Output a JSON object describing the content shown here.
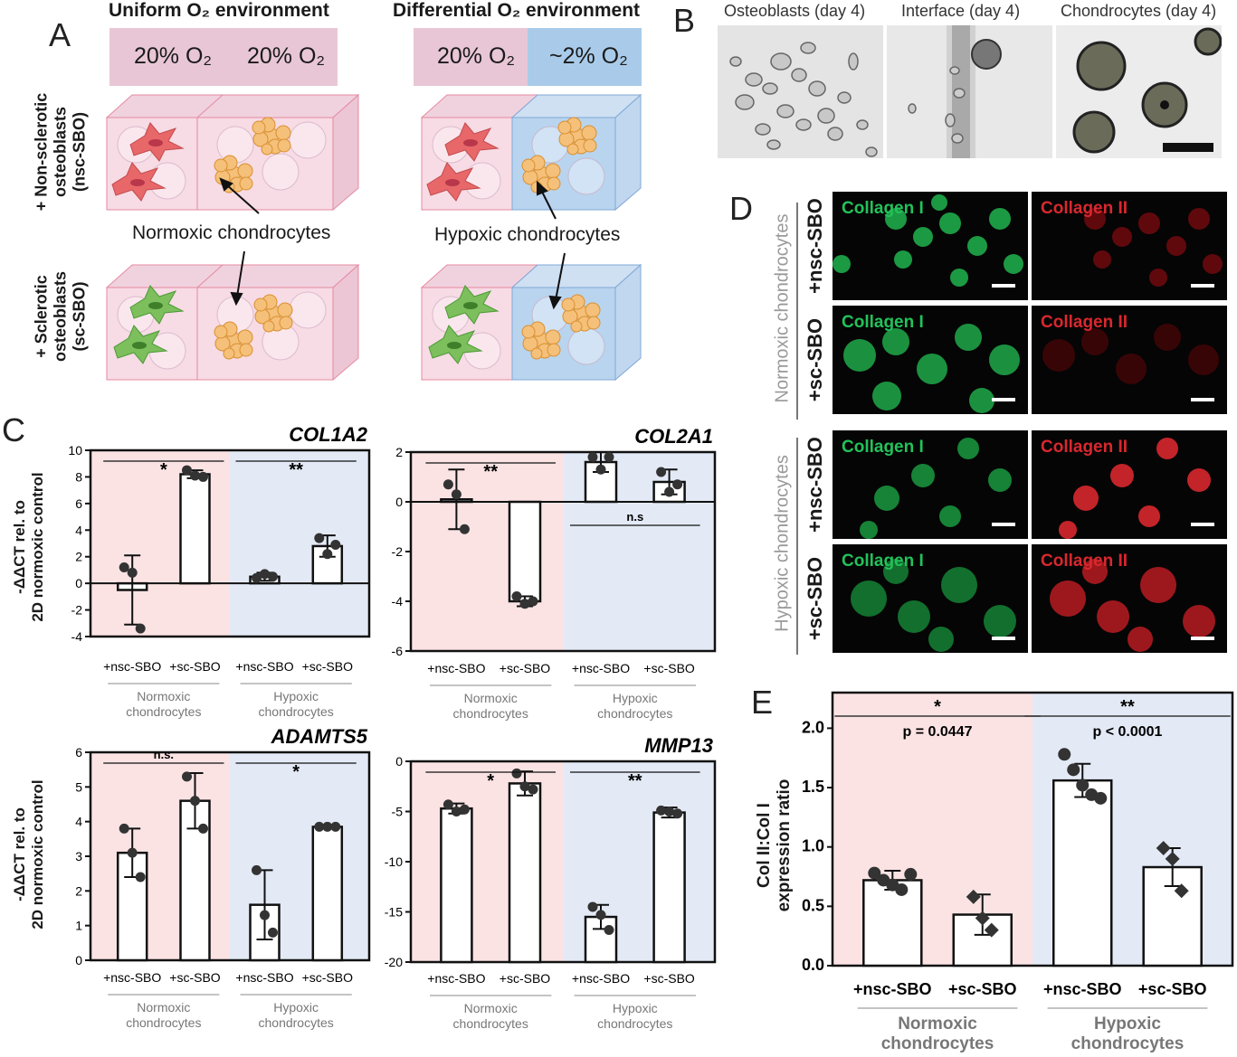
{
  "panel_labels": {
    "A": "A",
    "B": "B",
    "C": "C",
    "D": "D",
    "E": "E"
  },
  "panelA": {
    "uniform_title": "Uniform O₂ environment",
    "differential_title": "Differential O₂ environment",
    "uniform_bar": [
      "20% O₂",
      "20% O₂"
    ],
    "differential_bar": [
      "20% O₂",
      "~2% O₂"
    ],
    "row1_label": [
      "+ Non-sclerotic",
      "osteoblasts",
      "(nsc-SBO)"
    ],
    "row2_label": [
      "+ Sclerotic",
      "osteoblasts",
      "(sc-SBO)"
    ],
    "normoxic_label": "Normoxic chondrocytes",
    "hypoxic_label": "Hypoxic chondrocytes",
    "colors": {
      "pink": "#e8c6d6",
      "blue": "#a9cbe9",
      "nsc_cell": "#e8686a",
      "sc_cell": "#7cbf5c",
      "chondro": "#f5c07a"
    }
  },
  "panelB": {
    "titles": [
      "Osteoblasts (day 4)",
      "Interface (day 4)",
      "Chondrocytes (day 4)"
    ]
  },
  "panelD": {
    "group_labels": [
      "Normoxic chondrocytes",
      "Hypoxic chondrocytes"
    ],
    "row_labels": [
      "+nsc-SBO",
      "+sc-SBO",
      "+nsc-SBO",
      "+sc-SBO"
    ],
    "col1": "Collagen I",
    "col2": "Collagen II",
    "colors": {
      "green": "#22c25a",
      "red": "#d8282e"
    }
  },
  "panelC": {
    "ylabel": [
      "-ΔΔCT rel. to",
      "2D normoxic control"
    ],
    "group_labels": [
      [
        "Normoxic",
        "chondrocytes"
      ],
      [
        "Hypoxic",
        "chondrocytes"
      ]
    ],
    "colors": {
      "normoxic_bg": "#fbe3e4",
      "hypoxic_bg": "#e3eaf6"
    }
  },
  "panelE": {
    "ylabel": [
      "Col II:Col I",
      "expression ratio"
    ],
    "group_labels": [
      [
        "Normoxic",
        "chondrocytes"
      ],
      [
        "Hypoxic",
        "chondrocytes"
      ]
    ],
    "p_values": [
      "p = 0.0447",
      "p < 0.0001"
    ]
  },
  "chart_data": [
    {
      "id": "COL1A2",
      "type": "bar",
      "title": "COL1A2",
      "categories": [
        "+nsc-SBO",
        "+sc-SBO",
        "+nsc-SBO",
        "+sc-SBO"
      ],
      "values": [
        -0.5,
        8.2,
        0.5,
        2.8
      ],
      "err": [
        2.6,
        0.3,
        0.3,
        0.8
      ],
      "points": [
        [
          1.2,
          0.8,
          -3.4
        ],
        [
          8.5,
          8.1,
          8.0
        ],
        [
          0.4,
          0.7,
          0.5
        ],
        [
          3.4,
          2.2,
          2.9
        ]
      ],
      "ylim": [
        -4,
        10
      ],
      "yticks": [
        -4,
        -2,
        0,
        2,
        4,
        6,
        8,
        10
      ],
      "sig": [
        {
          "g": 0,
          "label": "*"
        },
        {
          "g": 1,
          "label": "**"
        }
      ]
    },
    {
      "id": "COL2A1",
      "type": "bar",
      "title": "COL2A1",
      "categories": [
        "+nsc-SBO",
        "+sc-SBO",
        "+nsc-SBO",
        "+sc-SBO"
      ],
      "values": [
        0.1,
        -4.0,
        1.6,
        0.8
      ],
      "err": [
        1.2,
        0.2,
        0.4,
        0.5
      ],
      "points": [
        [
          0.7,
          0.3,
          -1.1
        ],
        [
          -3.8,
          -4.1,
          -4.0
        ],
        [
          1.8,
          1.3,
          1.8
        ],
        [
          1.2,
          0.4,
          0.7
        ]
      ],
      "ylim": [
        -6,
        2
      ],
      "yticks": [
        -6,
        -4,
        -2,
        0,
        2
      ],
      "sig": [
        {
          "g": 0,
          "label": "**"
        },
        {
          "g": 1,
          "label": "n.s",
          "below": true
        }
      ]
    },
    {
      "id": "ADAMTS5",
      "type": "bar",
      "title": "ADAMTS5",
      "categories": [
        "+nsc-SBO",
        "+sc-SBO",
        "+nsc-SBO",
        "+sc-SBO"
      ],
      "values": [
        3.1,
        4.6,
        1.6,
        3.85
      ],
      "err": [
        0.7,
        0.8,
        1.0,
        0.05
      ],
      "points": [
        [
          3.8,
          3.1,
          2.4
        ],
        [
          5.3,
          4.6,
          3.8
        ],
        [
          2.6,
          1.3,
          0.8
        ],
        [
          3.85,
          3.85,
          3.85
        ]
      ],
      "ylim": [
        0,
        6
      ],
      "yticks": [
        0,
        1,
        2,
        3,
        4,
        5,
        6
      ],
      "sig": [
        {
          "g": 0,
          "label": "n.s."
        },
        {
          "g": 1,
          "label": "*"
        }
      ]
    },
    {
      "id": "MMP13",
      "type": "bar",
      "title": "MMP13",
      "categories": [
        "+nsc-SBO",
        "+sc-SBO",
        "+nsc-SBO",
        "+sc-SBO"
      ],
      "values": [
        -4.7,
        -2.2,
        -15.5,
        -5.1
      ],
      "err": [
        0.5,
        1.2,
        1.2,
        0.5
      ],
      "points": [
        [
          -4.3,
          -5.0,
          -4.8
        ],
        [
          -1.2,
          -2.5,
          -2.8
        ],
        [
          -14.5,
          -15.3,
          -16.8
        ],
        [
          -4.9,
          -5.0,
          -5.2
        ]
      ],
      "ylim": [
        -20,
        0
      ],
      "yticks": [
        -20,
        -15,
        -10,
        -5,
        0
      ],
      "sig": [
        {
          "g": 0,
          "label": "*"
        },
        {
          "g": 1,
          "label": "**"
        }
      ]
    },
    {
      "id": "E",
      "type": "bar",
      "title": "",
      "categories": [
        "+nsc-SBO",
        "+sc-SBO",
        "+nsc-SBO",
        "+sc-SBO"
      ],
      "values": [
        0.72,
        0.43,
        1.56,
        0.83
      ],
      "err": [
        0.08,
        0.17,
        0.14,
        0.16
      ],
      "points": [
        [
          0.78,
          0.72,
          0.68,
          0.64,
          0.77
        ],
        [
          0.58,
          0.4,
          0.3
        ],
        [
          1.78,
          1.65,
          1.52,
          1.44,
          1.41
        ],
        [
          0.99,
          0.9,
          0.63
        ]
      ],
      "ylim": [
        0,
        2.3
      ],
      "yticks": [
        0,
        0.5,
        1,
        1.5,
        2
      ],
      "sig": [
        {
          "g": 0,
          "label": "*"
        },
        {
          "g": 1,
          "label": "**"
        }
      ]
    }
  ]
}
